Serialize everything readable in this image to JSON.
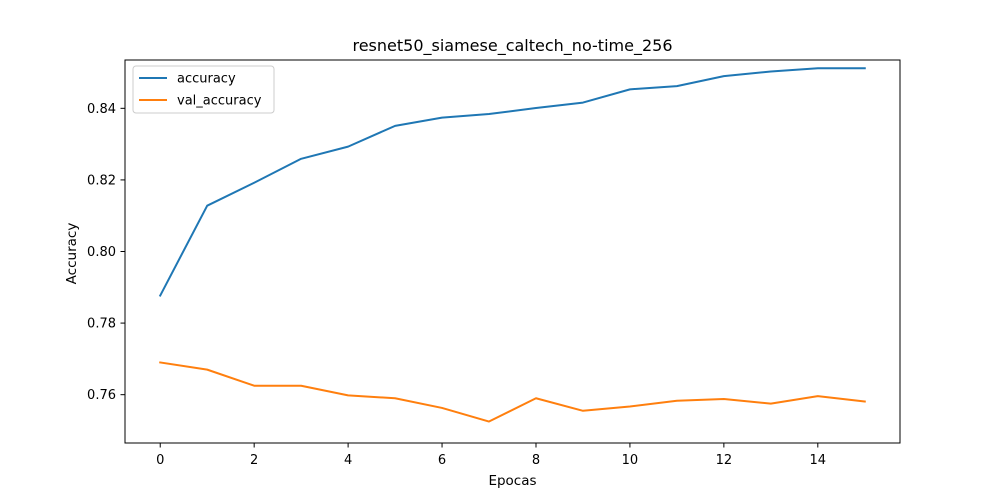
{
  "chart_data": {
    "type": "line",
    "title": "resnet50_siamese_caltech_no-time_256",
    "xlabel": "Epocas",
    "ylabel": "Accuracy",
    "x": [
      0,
      1,
      2,
      3,
      4,
      5,
      6,
      7,
      8,
      9,
      10,
      11,
      12,
      13,
      14,
      15
    ],
    "xlim": [
      -0.75,
      15.75
    ],
    "ylim": [
      0.7465,
      0.8535
    ],
    "xticks": [
      0,
      2,
      4,
      6,
      8,
      10,
      12,
      14
    ],
    "yticks": [
      0.76,
      0.78,
      0.8,
      0.82,
      0.84
    ],
    "xtick_labels": [
      "0",
      "2",
      "4",
      "6",
      "8",
      "10",
      "12",
      "14"
    ],
    "ytick_labels": [
      "0.76",
      "0.78",
      "0.80",
      "0.82",
      "0.84"
    ],
    "grid": false,
    "legend_position": "top-left",
    "series": [
      {
        "name": "accuracy",
        "color": "#1f77b4",
        "values": [
          0.7877,
          0.8128,
          0.8192,
          0.8259,
          0.8293,
          0.8351,
          0.8374,
          0.8384,
          0.8401,
          0.8416,
          0.8453,
          0.8462,
          0.849,
          0.8503,
          0.8512,
          0.8512
        ]
      },
      {
        "name": "val_accuracy",
        "color": "#ff7f0e",
        "values": [
          0.769,
          0.767,
          0.7625,
          0.7625,
          0.7598,
          0.759,
          0.7563,
          0.7525,
          0.759,
          0.7555,
          0.7567,
          0.7583,
          0.7588,
          0.7575,
          0.7596,
          0.7581
        ]
      }
    ]
  }
}
